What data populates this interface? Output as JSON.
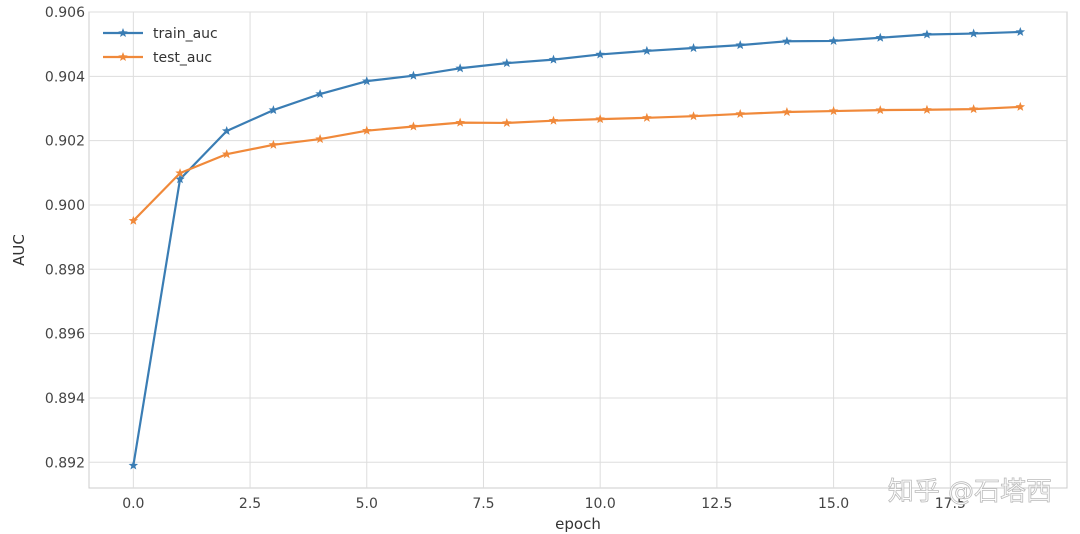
{
  "chart_data": {
    "type": "line",
    "title": "",
    "xlabel": "epoch",
    "ylabel": "AUC",
    "xlim": [
      -0.95,
      20.0
    ],
    "ylim": [
      0.8912,
      0.906
    ],
    "xticks": [
      0.0,
      2.5,
      5.0,
      7.5,
      10.0,
      12.5,
      15.0,
      17.5
    ],
    "xtick_labels": [
      "0.0",
      "2.5",
      "5.0",
      "7.5",
      "10.0",
      "12.5",
      "15.0",
      "17.5"
    ],
    "yticks": [
      0.892,
      0.894,
      0.896,
      0.898,
      0.9,
      0.902,
      0.904,
      0.906
    ],
    "ytick_labels": [
      "0.892",
      "0.894",
      "0.896",
      "0.898",
      "0.900",
      "0.902",
      "0.904",
      "0.906"
    ],
    "grid": true,
    "legend_position": "top-left",
    "x": [
      0,
      1,
      2,
      3,
      4,
      5,
      6,
      7,
      8,
      9,
      10,
      11,
      12,
      13,
      14,
      15,
      16,
      17,
      18,
      19
    ],
    "series": [
      {
        "name": "train_auc",
        "color": "#3a7db4",
        "marker": "star",
        "values": [
          0.8919,
          0.9008,
          0.9023,
          0.90295,
          0.90345,
          0.90385,
          0.90402,
          0.90425,
          0.90441,
          0.90452,
          0.90468,
          0.90479,
          0.90488,
          0.90497,
          0.90509,
          0.9051,
          0.9052,
          0.9053,
          0.90533,
          0.90538
        ]
      },
      {
        "name": "test_auc",
        "color": "#f0893a",
        "marker": "star",
        "values": [
          0.89951,
          0.90099,
          0.90158,
          0.90187,
          0.90205,
          0.90231,
          0.90244,
          0.90256,
          0.90255,
          0.90262,
          0.90267,
          0.90271,
          0.90276,
          0.90283,
          0.90289,
          0.90292,
          0.90295,
          0.90296,
          0.90298,
          0.90305
        ]
      }
    ]
  },
  "watermark": "知乎 @石塔西"
}
